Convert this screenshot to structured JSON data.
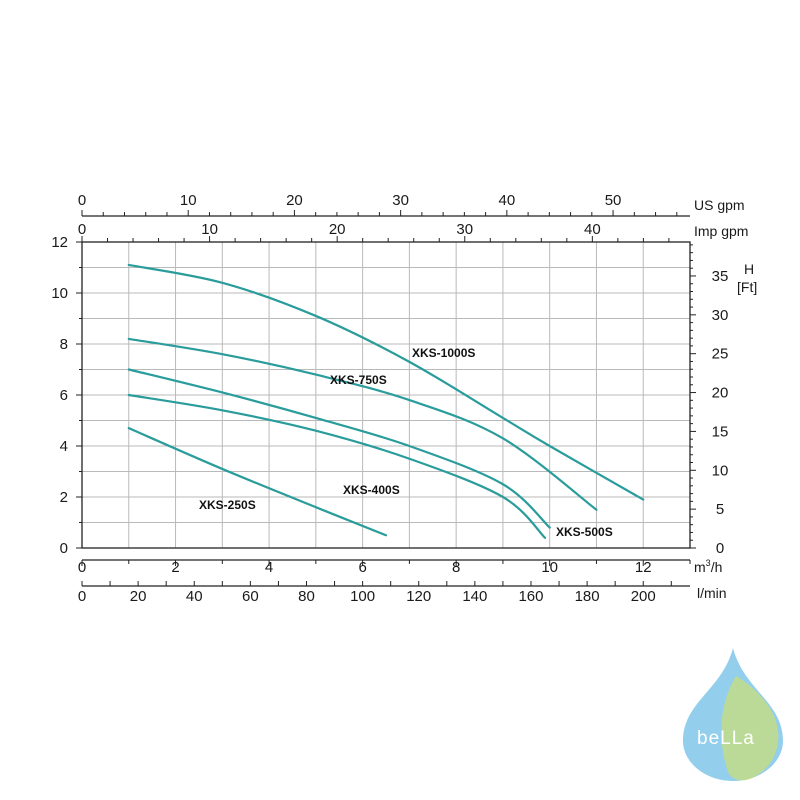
{
  "chart_data": {
    "type": "line",
    "title": "",
    "x_primary": {
      "unit": "m³/h",
      "unit_base": "m",
      "unit_sup": "3",
      "unit_tail": "/h",
      "range": [
        0,
        13
      ],
      "ticks": [
        0,
        2,
        4,
        6,
        8,
        10,
        12
      ],
      "minor_step": 1
    },
    "x_lmin": {
      "unit": "l/min",
      "ticks": [
        0,
        20,
        40,
        60,
        80,
        100,
        120,
        140,
        160,
        180,
        200
      ],
      "minor_step": 10
    },
    "x_us_gpm": {
      "unit": "US  gpm",
      "ticks": [
        0,
        10,
        20,
        30,
        40,
        50
      ],
      "minor_step": 2
    },
    "x_imp_gpm": {
      "unit": "Imp gpm",
      "ticks": [
        0,
        10,
        20,
        30,
        40
      ],
      "minor_step": 2
    },
    "y_left": {
      "unit": "",
      "range": [
        0,
        12
      ],
      "ticks": [
        0,
        2,
        4,
        6,
        8,
        10,
        12
      ],
      "minor_step": 1
    },
    "y_right": {
      "unit_line1": "H",
      "unit_line2": "[Ft]",
      "ticks": [
        0,
        5,
        10,
        15,
        20,
        25,
        30,
        35
      ],
      "minor_step": 1
    },
    "grid": true,
    "series": [
      {
        "name": "XKS-1000S",
        "points": [
          [
            1,
            11.1
          ],
          [
            3,
            10.4
          ],
          [
            5,
            9.1
          ],
          [
            7,
            7.3
          ],
          [
            9,
            5.1
          ],
          [
            10,
            4.0
          ],
          [
            12,
            1.9
          ]
        ]
      },
      {
        "name": "XKS-750S",
        "points": [
          [
            1,
            8.2
          ],
          [
            3,
            7.6
          ],
          [
            5,
            6.8
          ],
          [
            7,
            5.8
          ],
          [
            9,
            4.3
          ],
          [
            11,
            1.5
          ]
        ]
      },
      {
        "name": "XKS-500S",
        "points": [
          [
            1,
            7.0
          ],
          [
            3,
            6.1
          ],
          [
            5,
            5.1
          ],
          [
            7,
            4.0
          ],
          [
            9,
            2.5
          ],
          [
            10,
            0.8
          ]
        ]
      },
      {
        "name": "XKS-400S",
        "points": [
          [
            1,
            6.0
          ],
          [
            3,
            5.4
          ],
          [
            5,
            4.6
          ],
          [
            7,
            3.5
          ],
          [
            9,
            2.0
          ],
          [
            9.9,
            0.4
          ]
        ]
      },
      {
        "name": "XKS-250S",
        "points": [
          [
            1,
            4.7
          ],
          [
            3,
            3.1
          ],
          [
            5,
            1.6
          ],
          [
            6.5,
            0.5
          ]
        ]
      }
    ],
    "curve_color": "#2a9c9c"
  },
  "logo": {
    "text": "beLLa",
    "drop_color": "#3aa7de",
    "leaf_color": "#c8dc7a"
  }
}
